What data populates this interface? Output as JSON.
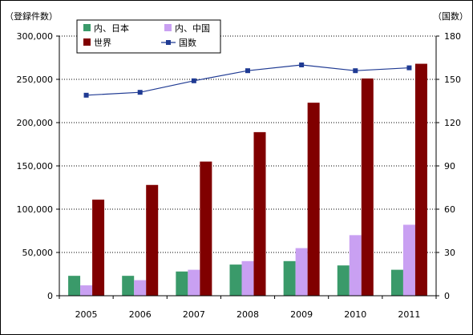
{
  "chart_data": {
    "type": "bar",
    "categories": [
      "2005",
      "2006",
      "2007",
      "2008",
      "2009",
      "2010",
      "2011"
    ],
    "series": [
      {
        "name": "内、日本",
        "kind": "bar",
        "axis": "left",
        "color": "#3a9a6a",
        "values": [
          23000,
          23000,
          28000,
          36000,
          40000,
          35000,
          30000
        ]
      },
      {
        "name": "内、中国",
        "kind": "bar",
        "axis": "left",
        "color": "#c9a0f2",
        "values": [
          12000,
          18000,
          30000,
          40000,
          55000,
          70000,
          82000
        ]
      },
      {
        "name": "世界",
        "kind": "bar",
        "axis": "left",
        "color": "#800000",
        "values": [
          111000,
          128000,
          155000,
          189000,
          223000,
          251000,
          268000
        ]
      },
      {
        "name": "国数",
        "kind": "line",
        "axis": "right",
        "color": "#1f3a93",
        "values": [
          139,
          141,
          149,
          156,
          160,
          156,
          158
        ]
      }
    ],
    "y_left": {
      "label": "（登録件数）",
      "ylim": [
        0,
        300000
      ],
      "ticks": [
        "0",
        "50,000",
        "100,000",
        "150,000",
        "200,000",
        "250,000",
        "300,000"
      ]
    },
    "y_right": {
      "label": "（国数）",
      "ylim": [
        0,
        180
      ],
      "ticks": [
        "0",
        "30",
        "60",
        "90",
        "120",
        "150",
        "180"
      ]
    },
    "grid": "horizontal-dotted",
    "legend_position": "top-left"
  }
}
